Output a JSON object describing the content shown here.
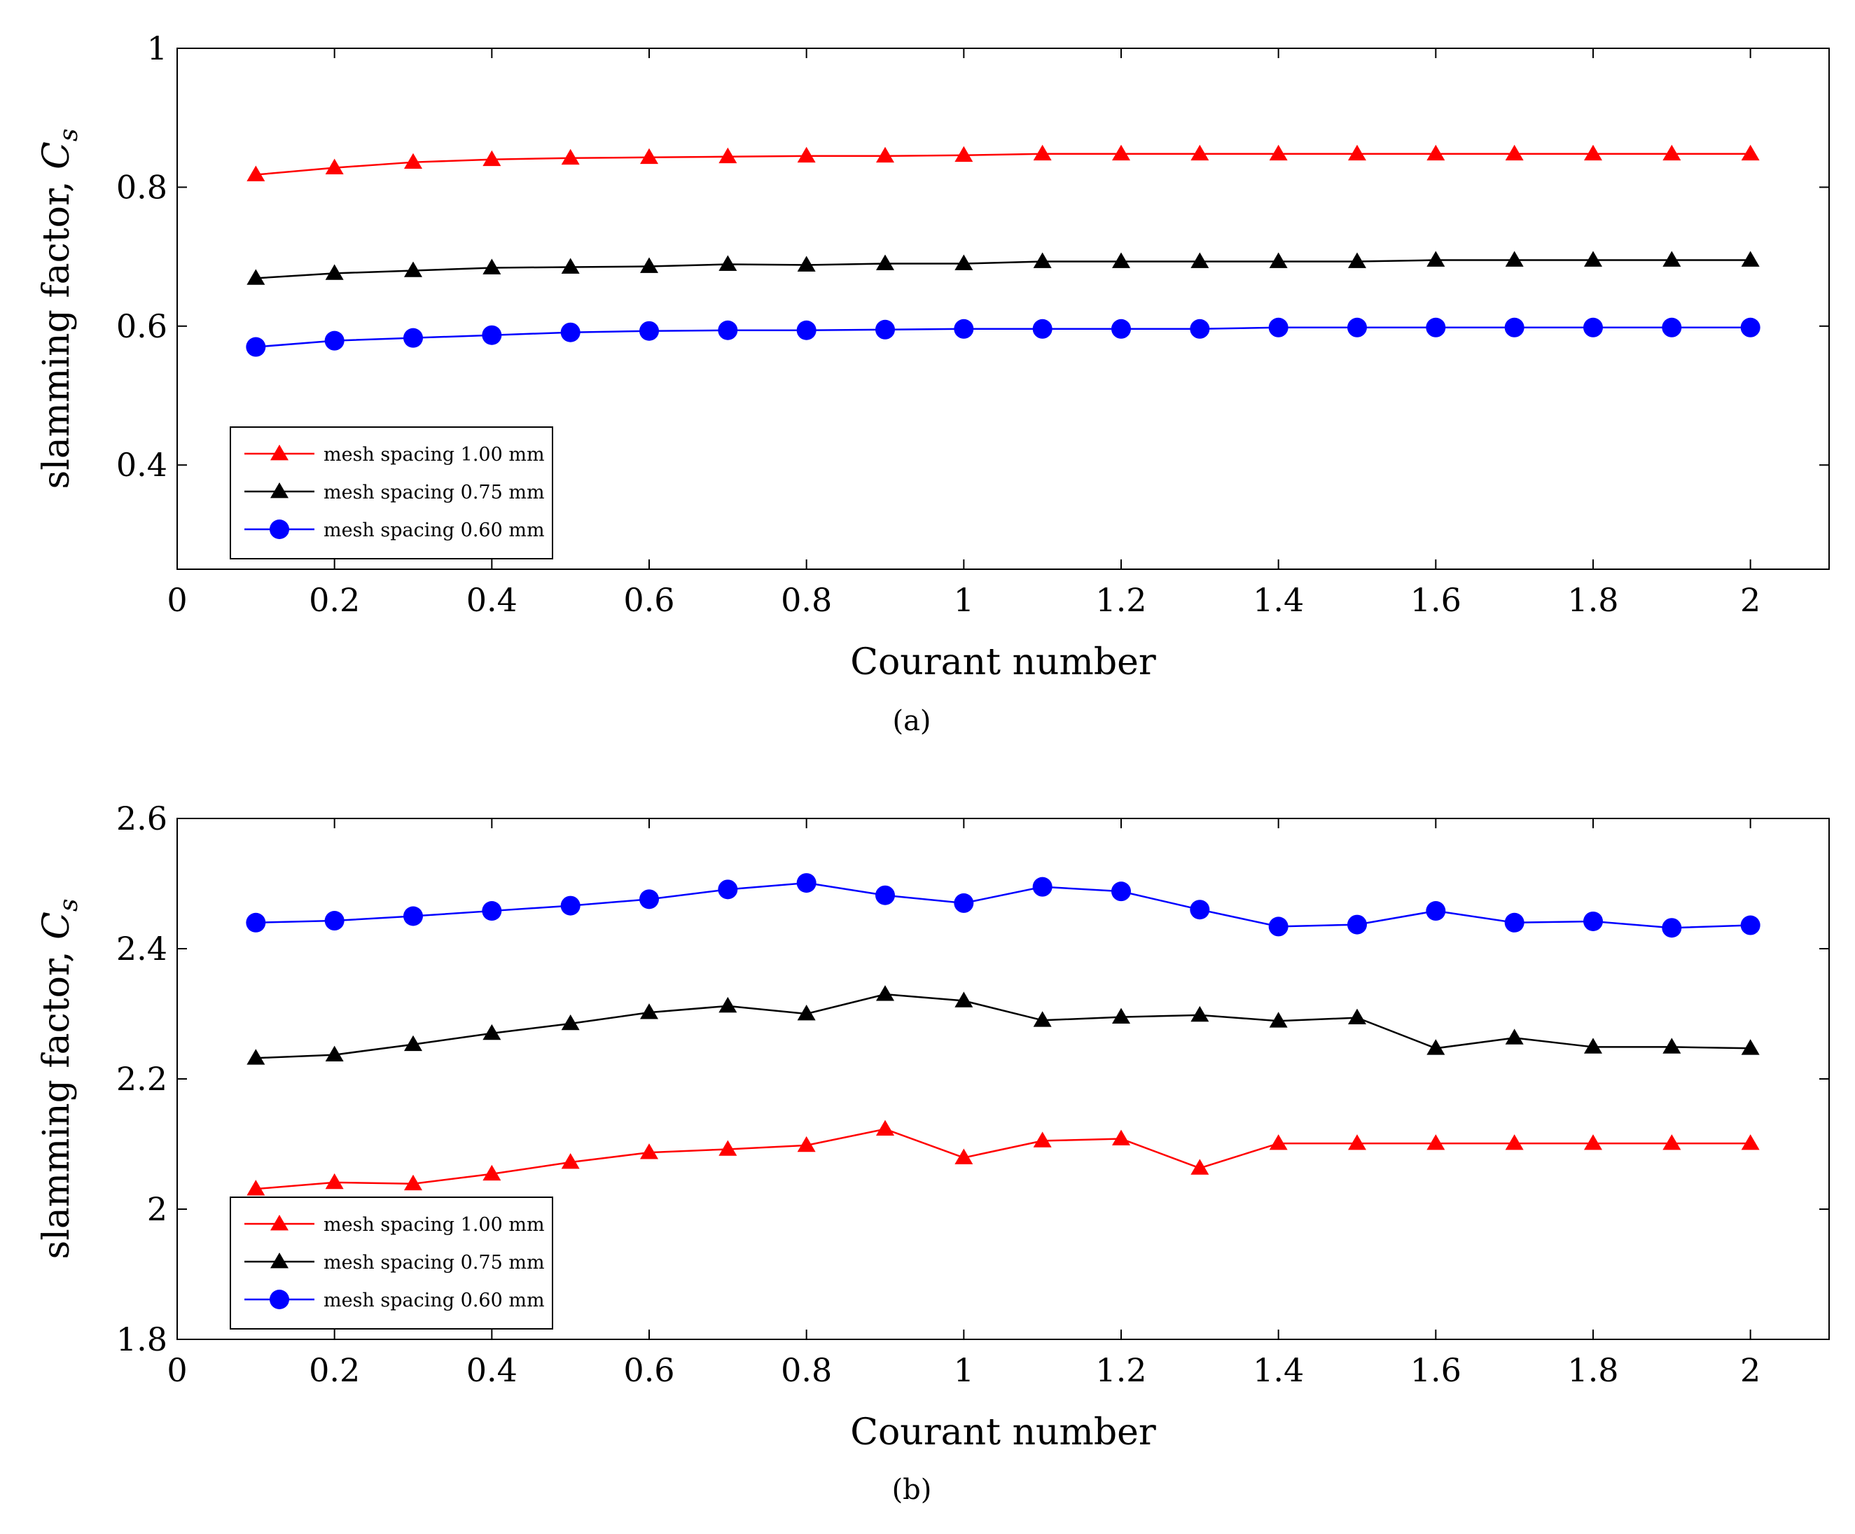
{
  "chart_data": [
    {
      "type": "line",
      "panel": "a",
      "caption": "(a)",
      "xlabel": "Courant number",
      "ylabel": "slamming factor, ",
      "ylabel_symbol": "C",
      "ylabel_subscript": "s",
      "xlim": [
        0,
        2.1
      ],
      "ylim": [
        0.25,
        1.0
      ],
      "xticks": [
        0,
        0.2,
        0.4,
        0.6,
        0.8,
        1,
        1.2,
        1.4,
        1.6,
        1.8,
        2
      ],
      "xtick_labels": [
        "0",
        "0.2",
        "0.4",
        "0.6",
        "0.8",
        "1",
        "1.2",
        "1.4",
        "1.6",
        "1.8",
        "2"
      ],
      "yticks": [
        0.4,
        0.6,
        0.8,
        1.0
      ],
      "ytick_labels": [
        "0.4",
        "0.6",
        "0.8",
        "1"
      ],
      "legend_position": "bottom-left",
      "x": [
        0.1,
        0.2,
        0.3,
        0.4,
        0.5,
        0.6,
        0.7,
        0.8,
        0.9,
        1.0,
        1.1,
        1.2,
        1.3,
        1.4,
        1.5,
        1.6,
        1.7,
        1.8,
        1.9,
        2.0
      ],
      "series": [
        {
          "name": "mesh spacing 1.00 mm",
          "color": "#ff0000",
          "marker": "triangle",
          "values": [
            0.818,
            0.828,
            0.836,
            0.84,
            0.842,
            0.843,
            0.844,
            0.845,
            0.845,
            0.846,
            0.848,
            0.848,
            0.848,
            0.848,
            0.848,
            0.848,
            0.848,
            0.848,
            0.848,
            0.848
          ]
        },
        {
          "name": "mesh spacing 0.75 mm",
          "color": "#000000",
          "marker": "triangle",
          "values": [
            0.669,
            0.676,
            0.68,
            0.684,
            0.685,
            0.686,
            0.689,
            0.688,
            0.69,
            0.69,
            0.693,
            0.693,
            0.693,
            0.693,
            0.693,
            0.695,
            0.695,
            0.695,
            0.695,
            0.695
          ]
        },
        {
          "name": "mesh spacing 0.60 mm",
          "color": "#0000ff",
          "marker": "circle",
          "values": [
            0.57,
            0.579,
            0.583,
            0.587,
            0.591,
            0.593,
            0.594,
            0.594,
            0.595,
            0.596,
            0.596,
            0.596,
            0.596,
            0.598,
            0.598,
            0.598,
            0.598,
            0.598,
            0.598,
            0.598
          ]
        }
      ]
    },
    {
      "type": "line",
      "panel": "b",
      "caption": "(b)",
      "xlabel": "Courant number",
      "ylabel": "slamming factor, ",
      "ylabel_symbol": "C",
      "ylabel_subscript": "s",
      "xlim": [
        0,
        2.1
      ],
      "ylim": [
        1.8,
        2.6
      ],
      "xticks": [
        0,
        0.2,
        0.4,
        0.6,
        0.8,
        1,
        1.2,
        1.4,
        1.6,
        1.8,
        2
      ],
      "xtick_labels": [
        "0",
        "0.2",
        "0.4",
        "0.6",
        "0.8",
        "1",
        "1.2",
        "1.4",
        "1.6",
        "1.8",
        "2"
      ],
      "yticks": [
        1.8,
        2.0,
        2.2,
        2.4,
        2.6
      ],
      "ytick_labels": [
        "1.8",
        "2",
        "2.2",
        "2.4",
        "2.6"
      ],
      "legend_position": "bottom-left",
      "x": [
        0.1,
        0.2,
        0.3,
        0.4,
        0.5,
        0.6,
        0.7,
        0.8,
        0.9,
        1.0,
        1.1,
        1.2,
        1.3,
        1.4,
        1.5,
        1.6,
        1.7,
        1.8,
        1.9,
        2.0
      ],
      "series": [
        {
          "name": "mesh spacing 1.00 mm",
          "color": "#ff0000",
          "marker": "triangle",
          "values": [
            2.031,
            2.041,
            2.039,
            2.054,
            2.072,
            2.087,
            2.092,
            2.098,
            2.123,
            2.079,
            2.105,
            2.108,
            2.063,
            2.101,
            2.101,
            2.101,
            2.101,
            2.101,
            2.101,
            2.101
          ]
        },
        {
          "name": "mesh spacing 0.75 mm",
          "color": "#000000",
          "marker": "triangle",
          "values": [
            2.232,
            2.237,
            2.253,
            2.27,
            2.285,
            2.302,
            2.312,
            2.3,
            2.33,
            2.32,
            2.29,
            2.295,
            2.298,
            2.289,
            2.294,
            2.247,
            2.263,
            2.249,
            2.249,
            2.247
          ]
        },
        {
          "name": "mesh spacing 0.60 mm",
          "color": "#0000ff",
          "marker": "circle",
          "values": [
            2.44,
            2.443,
            2.45,
            2.458,
            2.466,
            2.476,
            2.491,
            2.501,
            2.482,
            2.47,
            2.495,
            2.488,
            2.46,
            2.434,
            2.437,
            2.458,
            2.44,
            2.442,
            2.432,
            2.436
          ]
        }
      ]
    }
  ]
}
